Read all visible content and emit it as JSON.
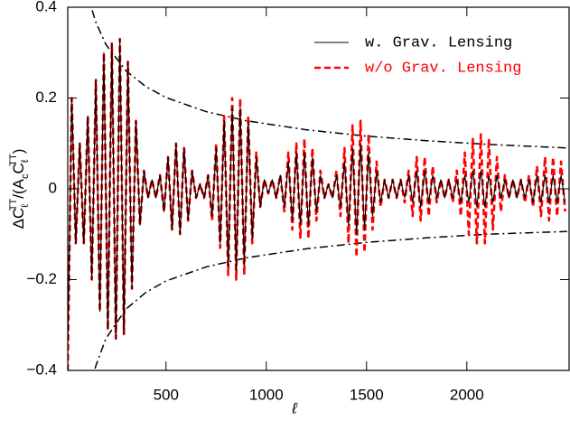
{
  "chart_data": {
    "type": "line",
    "x_label": "ℓ",
    "y_label_parts": [
      "ΔC",
      "ℓ",
      "TT",
      "/(A",
      "c",
      "C",
      "ℓ",
      "TT",
      ")"
    ],
    "xlim": [
      10,
      2510
    ],
    "ylim": [
      -0.4,
      0.4
    ],
    "xticks": [
      500,
      1000,
      1500,
      2000
    ],
    "yticks": [
      {
        "value": -0.4,
        "label": "−0.4"
      },
      {
        "value": -0.2,
        "label": "−0.2"
      },
      0,
      0.2,
      0.4
    ],
    "legend": "upper right",
    "x": [
      10,
      30,
      50,
      70,
      90,
      110,
      130,
      150,
      170,
      190,
      210,
      230,
      250,
      270,
      290,
      310,
      330,
      350,
      370,
      390,
      410,
      430,
      450,
      470,
      490,
      510,
      530,
      550,
      570,
      590,
      610,
      630,
      650,
      670,
      690,
      710,
      730,
      750,
      770,
      790,
      810,
      830,
      850,
      870,
      890,
      910,
      930,
      950,
      970,
      990,
      1010,
      1030,
      1050,
      1070,
      1090,
      1110,
      1130,
      1150,
      1170,
      1190,
      1210,
      1230,
      1250,
      1270,
      1290,
      1310,
      1330,
      1350,
      1370,
      1390,
      1410,
      1430,
      1450,
      1470,
      1490,
      1510,
      1530,
      1550,
      1570,
      1590,
      1610,
      1630,
      1650,
      1670,
      1690,
      1710,
      1730,
      1750,
      1770,
      1790,
      1810,
      1830,
      1850,
      1870,
      1890,
      1910,
      1930,
      1950,
      1970,
      1990,
      2010,
      2030,
      2050,
      2070,
      2090,
      2110,
      2130,
      2150,
      2170,
      2190,
      2210,
      2230,
      2250,
      2270,
      2290,
      2310,
      2330,
      2350,
      2370,
      2390,
      2410,
      2430,
      2450,
      2470,
      2490
    ],
    "series": [
      {
        "name": "w. Grav. Lensing",
        "color": "#000000",
        "dashed": false,
        "values": [
          -0.35,
          0.2,
          -0.12,
          0.1,
          -0.12,
          0.16,
          -0.2,
          0.24,
          -0.27,
          0.3,
          -0.31,
          0.32,
          -0.33,
          0.33,
          -0.32,
          0.28,
          -0.22,
          0.15,
          -0.08,
          0.04,
          -0.02,
          0.02,
          -0.02,
          0.03,
          -0.05,
          0.07,
          -0.09,
          0.1,
          -0.1,
          0.09,
          -0.07,
          0.04,
          -0.02,
          0.01,
          -0.02,
          0.03,
          -0.06,
          0.09,
          -0.12,
          0.15,
          -0.17,
          0.18,
          -0.18,
          0.18,
          -0.17,
          0.15,
          -0.11,
          0.07,
          -0.04,
          0.02,
          -0.01,
          0.02,
          -0.02,
          0.03,
          -0.04,
          0.06,
          -0.07,
          0.08,
          -0.08,
          0.08,
          -0.08,
          0.07,
          -0.05,
          0.03,
          -0.02,
          0.01,
          -0.02,
          0.03,
          -0.04,
          0.06,
          -0.08,
          0.09,
          -0.1,
          0.1,
          -0.09,
          0.08,
          -0.06,
          0.04,
          -0.03,
          0.02,
          -0.02,
          0.02,
          -0.02,
          0.02,
          -0.02,
          0.03,
          -0.03,
          0.04,
          -0.04,
          0.04,
          -0.03,
          0.03,
          -0.02,
          0.02,
          -0.02,
          0.02,
          -0.02,
          0.02,
          -0.03,
          0.03,
          -0.03,
          0.04,
          -0.04,
          0.04,
          -0.04,
          0.03,
          -0.03,
          0.03,
          -0.02,
          0.02,
          -0.02,
          0.02,
          -0.02,
          0.02,
          -0.02,
          0.02,
          -0.03,
          0.03,
          -0.03,
          0.03,
          -0.03,
          0.03,
          -0.03,
          0.03,
          -0.03
        ]
      },
      {
        "name": "w/o Grav. Lensing",
        "color": "#ff0000",
        "dashed": true,
        "values": [
          -0.4,
          0.2,
          -0.12,
          0.1,
          -0.12,
          0.16,
          -0.2,
          0.24,
          -0.27,
          0.3,
          -0.31,
          0.32,
          -0.33,
          0.33,
          -0.32,
          0.28,
          -0.22,
          0.15,
          -0.08,
          0.04,
          -0.02,
          0.02,
          -0.02,
          0.03,
          -0.05,
          0.07,
          -0.09,
          0.1,
          -0.1,
          0.09,
          -0.07,
          0.04,
          -0.02,
          0.01,
          -0.02,
          0.03,
          -0.07,
          0.1,
          -0.13,
          0.16,
          -0.19,
          0.2,
          -0.2,
          0.2,
          -0.19,
          0.16,
          -0.12,
          0.08,
          -0.04,
          0.02,
          -0.01,
          0.02,
          -0.02,
          0.03,
          -0.05,
          0.08,
          -0.09,
          0.1,
          -0.11,
          0.11,
          -0.11,
          0.09,
          -0.07,
          0.04,
          -0.02,
          0.01,
          -0.02,
          0.04,
          -0.06,
          0.09,
          -0.12,
          0.14,
          -0.15,
          0.15,
          -0.14,
          0.12,
          -0.09,
          0.06,
          -0.04,
          0.02,
          -0.02,
          0.02,
          -0.02,
          0.02,
          -0.03,
          0.04,
          -0.06,
          0.07,
          -0.07,
          0.07,
          -0.06,
          0.05,
          -0.03,
          0.02,
          -0.02,
          0.02,
          -0.03,
          0.04,
          -0.06,
          0.08,
          -0.1,
          0.11,
          -0.12,
          0.12,
          -0.12,
          0.11,
          -0.09,
          0.07,
          -0.05,
          0.03,
          -0.02,
          0.02,
          -0.02,
          0.02,
          -0.03,
          0.03,
          -0.04,
          0.05,
          -0.06,
          0.07,
          -0.07,
          0.07,
          -0.06,
          0.06,
          -0.05
        ]
      }
    ],
    "envelopes": [
      {
        "x": [
          110,
          127,
          150,
          200,
          300,
          400,
          500,
          700,
          900,
          1200,
          1500,
          1800,
          2100,
          2500
        ],
        "values": [
          0.43,
          0.4,
          0.367,
          0.318,
          0.26,
          0.225,
          0.201,
          0.17,
          0.15,
          0.13,
          0.116,
          0.106,
          0.098,
          0.09
        ]
      },
      {
        "x": [
          110,
          127,
          150,
          200,
          300,
          400,
          500,
          700,
          900,
          1200,
          1500,
          1800,
          2100,
          2500
        ],
        "values": [
          -0.47,
          -0.43,
          -0.39,
          -0.33,
          -0.265,
          -0.228,
          -0.203,
          -0.172,
          -0.152,
          -0.132,
          -0.118,
          -0.108,
          -0.1,
          -0.094
        ]
      }
    ]
  }
}
